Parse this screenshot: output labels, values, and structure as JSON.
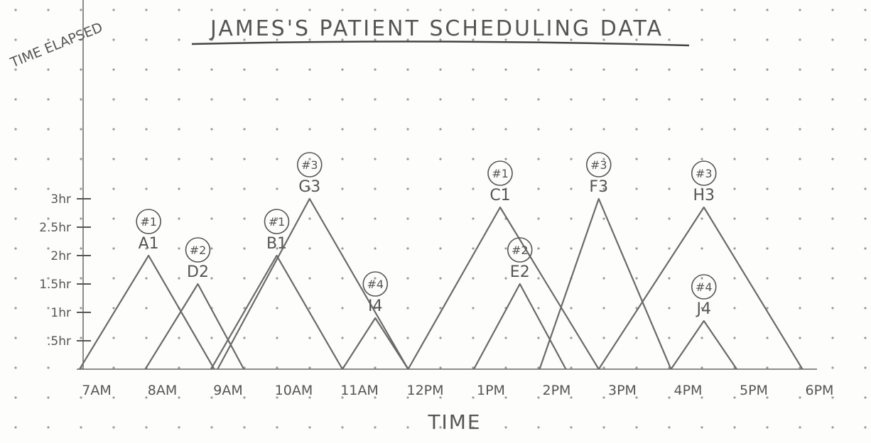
{
  "chart_data": {
    "type": "area",
    "title": "JAMES'S PATIENT SCHEDULING DATA",
    "xlabel": "TIME",
    "ylabel": "TIME ELAPSED",
    "x_ticks": [
      "7AM",
      "8AM",
      "9AM",
      "10AM",
      "11AM",
      "12PM",
      "1PM",
      "2PM",
      "3PM",
      "4PM",
      "5PM",
      "6PM"
    ],
    "y_ticks": [
      {
        "value": 0.5,
        "label": ".5hr"
      },
      {
        "value": 1,
        "label": "1hr"
      },
      {
        "value": 1.5,
        "label": "1.5hr"
      },
      {
        "value": 2,
        "label": "2hr"
      },
      {
        "value": 2.5,
        "label": "2.5hr"
      },
      {
        "value": 3,
        "label": "3hr"
      }
    ],
    "xlim": [
      7,
      18
    ],
    "ylim": [
      0,
      3.3
    ],
    "series": [
      {
        "name": "A1",
        "group": "#1",
        "start": 7.0,
        "peak": 8.05,
        "end": 9.05,
        "height": 2.0
      },
      {
        "name": "D2",
        "group": "#2",
        "start": 8.0,
        "peak": 8.8,
        "end": 9.5,
        "height": 1.5
      },
      {
        "name": "B1",
        "group": "#1",
        "start": 9.0,
        "peak": 10.0,
        "end": 11.0,
        "height": 2.0
      },
      {
        "name": "G3",
        "group": "#3",
        "start": 9.1,
        "peak": 10.5,
        "end": 12.0,
        "height": 3.0
      },
      {
        "name": "I4",
        "group": "#4",
        "start": 11.0,
        "peak": 11.5,
        "end": 12.0,
        "height": 0.9
      },
      {
        "name": "C1",
        "group": "#1",
        "start": 12.0,
        "peak": 13.4,
        "end": 14.9,
        "height": 2.85
      },
      {
        "name": "E2",
        "group": "#2",
        "start": 13.0,
        "peak": 13.7,
        "end": 14.4,
        "height": 1.5
      },
      {
        "name": "F3",
        "group": "#3",
        "start": 14.0,
        "peak": 14.9,
        "end": 16.0,
        "height": 3.0
      },
      {
        "name": "H3",
        "group": "#3",
        "start": 14.9,
        "peak": 16.5,
        "end": 18.0,
        "height": 2.85
      },
      {
        "name": "J4",
        "group": "#4",
        "start": 16.0,
        "peak": 16.5,
        "end": 17.0,
        "height": 0.85
      }
    ]
  }
}
